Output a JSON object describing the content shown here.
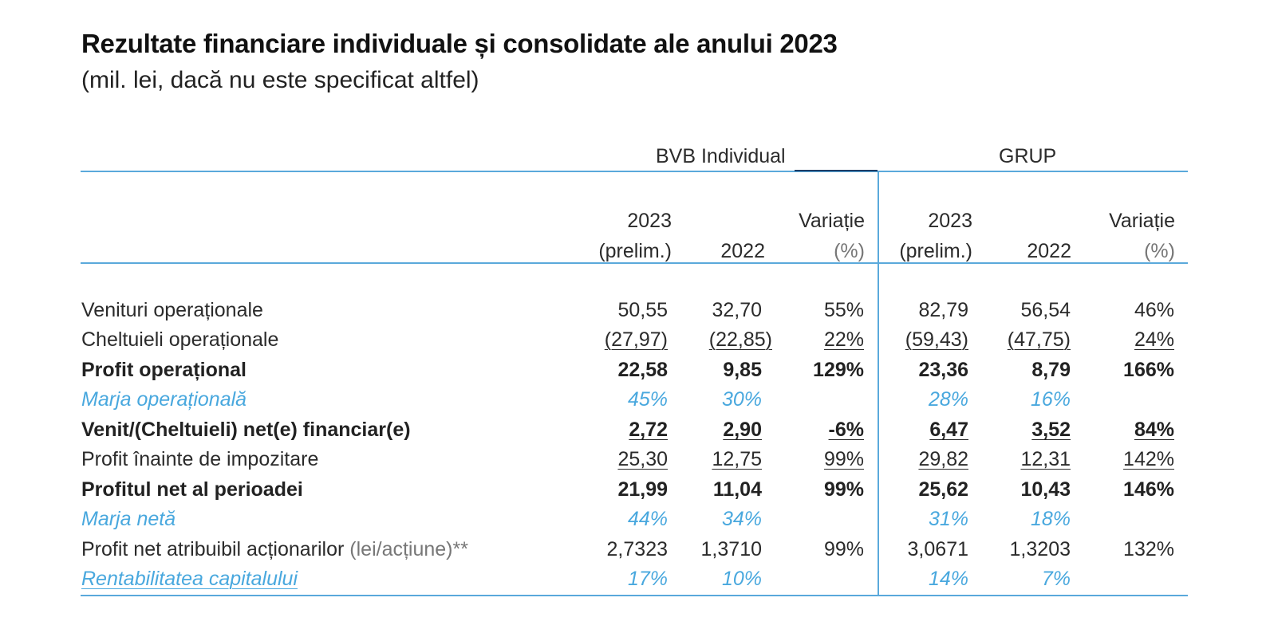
{
  "title": "Rezultate financiare individuale și consolidate ale anului 2023",
  "subtitle": "(mil. lei, dacă nu este specificat altfel)",
  "groups": {
    "individual": "BVB Individual",
    "group": "GRUP"
  },
  "columns": {
    "y2023_line1": "2023",
    "y2023_line2": "(prelim.)",
    "y2022": "2022",
    "var_line1": "Variație",
    "var_line2": "(%)"
  },
  "rows": [
    {
      "label": "Venituri operaționale",
      "bvb_2023": "50,55",
      "bvb_2022": "32,70",
      "bvb_var": "55%",
      "grp_2023": "82,79",
      "grp_2022": "56,54",
      "grp_var": "46%"
    },
    {
      "label": "Cheltuieli operaționale",
      "bvb_2023": "(27,97)",
      "bvb_2022": "(22,85)",
      "bvb_var": "22%",
      "grp_2023": "(59,43)",
      "grp_2022": "(47,75)",
      "grp_var": "24%"
    },
    {
      "label": "Profit operațional",
      "bvb_2023": "22,58",
      "bvb_2022": "9,85",
      "bvb_var": "129%",
      "grp_2023": "23,36",
      "grp_2022": "8,79",
      "grp_var": "166%"
    },
    {
      "label": "Marja operațională",
      "bvb_2023": "45%",
      "bvb_2022": "30%",
      "bvb_var": "",
      "grp_2023": "28%",
      "grp_2022": "16%",
      "grp_var": ""
    },
    {
      "label": "Venit/(Cheltuieli) net(e) financiar(e)",
      "bvb_2023": "2,72",
      "bvb_2022": "2,90",
      "bvb_var": "-6%",
      "grp_2023": "6,47",
      "grp_2022": "3,52",
      "grp_var": "84%"
    },
    {
      "label": "Profit înainte de impozitare",
      "bvb_2023": "25,30",
      "bvb_2022": "12,75",
      "bvb_var": "99%",
      "grp_2023": "29,82",
      "grp_2022": "12,31",
      "grp_var": "142%"
    },
    {
      "label": "Profitul net al perioadei",
      "bvb_2023": "21,99",
      "bvb_2022": "11,04",
      "bvb_var": "99%",
      "grp_2023": "25,62",
      "grp_2022": "10,43",
      "grp_var": "146%"
    },
    {
      "label": "Marja netă",
      "bvb_2023": "44%",
      "bvb_2022": "34%",
      "bvb_var": "",
      "grp_2023": "31%",
      "grp_2022": "18%",
      "grp_var": ""
    },
    {
      "label": "Profit net atribuibil acționarilor",
      "unit": "(lei/acțiune)**",
      "bvb_2023": "2,7323",
      "bvb_2022": "1,3710",
      "bvb_var": "99%",
      "grp_2023": "3,0671",
      "grp_2022": "1,3203",
      "grp_var": "132%"
    },
    {
      "label": "Rentabilitatea capitalului",
      "bvb_2023": "17%",
      "bvb_2022": "10%",
      "bvb_var": "",
      "grp_2023": "14%",
      "grp_2022": "7%",
      "grp_var": ""
    }
  ],
  "colors": {
    "accent": "#49a8de",
    "rule": "#5aa9db",
    "text": "#2b2b2b"
  }
}
